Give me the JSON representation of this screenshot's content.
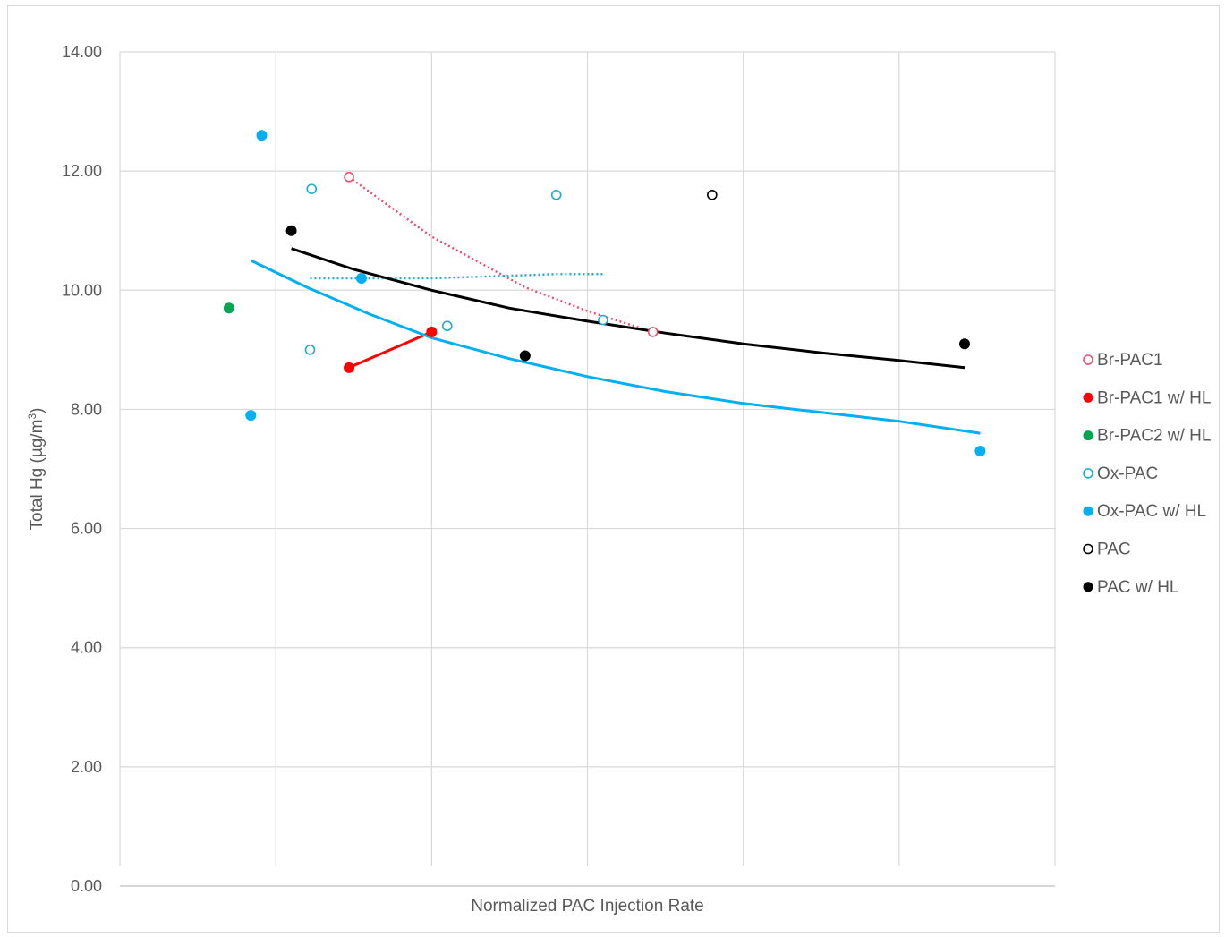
{
  "chart_data": {
    "type": "scatter",
    "title": "",
    "xlabel": "Normalized PAC Injection Rate",
    "ylabel": "Total Hg (µg/m³)",
    "ylabel_parts": {
      "prefix": "Total Hg (µg/m",
      "sup": "3",
      "suffix": ")"
    },
    "xlim": [
      0,
      6
    ],
    "ylim": [
      0,
      14
    ],
    "x_tick_labels_shown": false,
    "y_ticks": [
      "0.00",
      "2.00",
      "4.00",
      "6.00",
      "8.00",
      "10.00",
      "12.00",
      "14.00"
    ],
    "y_tick_values": [
      0,
      2,
      4,
      6,
      8,
      10,
      12,
      14
    ],
    "x_gridlines": [
      1,
      2,
      3,
      4,
      5
    ],
    "grid": true,
    "legend_position": "right",
    "series": [
      {
        "name": "Br-PAC1",
        "color": "#e8506e",
        "marker": "open-circle",
        "points": [
          [
            1.47,
            11.9
          ],
          [
            3.42,
            9.3
          ]
        ],
        "trendline": {
          "style": "dotted",
          "points": [
            [
              1.47,
              11.9
            ],
            [
              2.0,
              10.9
            ],
            [
              2.6,
              10.05
            ],
            [
              3.0,
              9.65
            ],
            [
              3.42,
              9.3
            ]
          ]
        }
      },
      {
        "name": "Br-PAC1 w/ HL",
        "color": "#ff0000",
        "marker": "filled-circle",
        "points": [
          [
            1.47,
            8.7
          ],
          [
            2.0,
            9.3
          ]
        ],
        "trendline": {
          "style": "solid",
          "points": [
            [
              1.47,
              8.7
            ],
            [
              2.0,
              9.3
            ]
          ]
        }
      },
      {
        "name": "Br-PAC2 w/ HL",
        "color": "#00a651",
        "marker": "filled-circle",
        "points": [
          [
            0.7,
            9.7
          ]
        ]
      },
      {
        "name": "Ox-PAC",
        "color": "#1aafd0",
        "marker": "open-circle",
        "points": [
          [
            1.23,
            11.7
          ],
          [
            1.22,
            9.0
          ],
          [
            2.1,
            9.4
          ],
          [
            2.8,
            11.6
          ],
          [
            3.1,
            9.5
          ]
        ],
        "trendline": {
          "style": "dotted",
          "points": [
            [
              1.22,
              10.2
            ],
            [
              2.0,
              10.2
            ],
            [
              2.8,
              10.27
            ],
            [
              3.1,
              10.27
            ]
          ]
        }
      },
      {
        "name": "Ox-PAC w/ HL",
        "color": "#00b0f0",
        "marker": "filled-circle",
        "points": [
          [
            0.91,
            12.6
          ],
          [
            0.84,
            7.9
          ],
          [
            1.55,
            10.2
          ],
          [
            5.52,
            7.3
          ]
        ],
        "trendline": {
          "style": "solid",
          "points": [
            [
              0.84,
              10.5
            ],
            [
              1.2,
              10.05
            ],
            [
              1.6,
              9.6
            ],
            [
              2.0,
              9.2
            ],
            [
              2.5,
              8.85
            ],
            [
              3.0,
              8.55
            ],
            [
              3.5,
              8.3
            ],
            [
              4.0,
              8.1
            ],
            [
              4.5,
              7.95
            ],
            [
              5.0,
              7.8
            ],
            [
              5.52,
              7.6
            ]
          ]
        }
      },
      {
        "name": "PAC",
        "color": "#000000",
        "marker": "open-circle",
        "points": [
          [
            3.8,
            11.6
          ]
        ]
      },
      {
        "name": "PAC w/ HL",
        "color": "#000000",
        "marker": "filled-circle",
        "points": [
          [
            1.1,
            11.0
          ],
          [
            2.6,
            8.9
          ],
          [
            5.42,
            9.1
          ]
        ],
        "trendline": {
          "style": "solid",
          "points": [
            [
              1.1,
              10.7
            ],
            [
              1.5,
              10.35
            ],
            [
              2.0,
              10.0
            ],
            [
              2.5,
              9.7
            ],
            [
              3.0,
              9.48
            ],
            [
              3.5,
              9.28
            ],
            [
              4.0,
              9.1
            ],
            [
              4.5,
              8.95
            ],
            [
              5.0,
              8.82
            ],
            [
              5.42,
              8.7
            ]
          ]
        }
      }
    ]
  }
}
